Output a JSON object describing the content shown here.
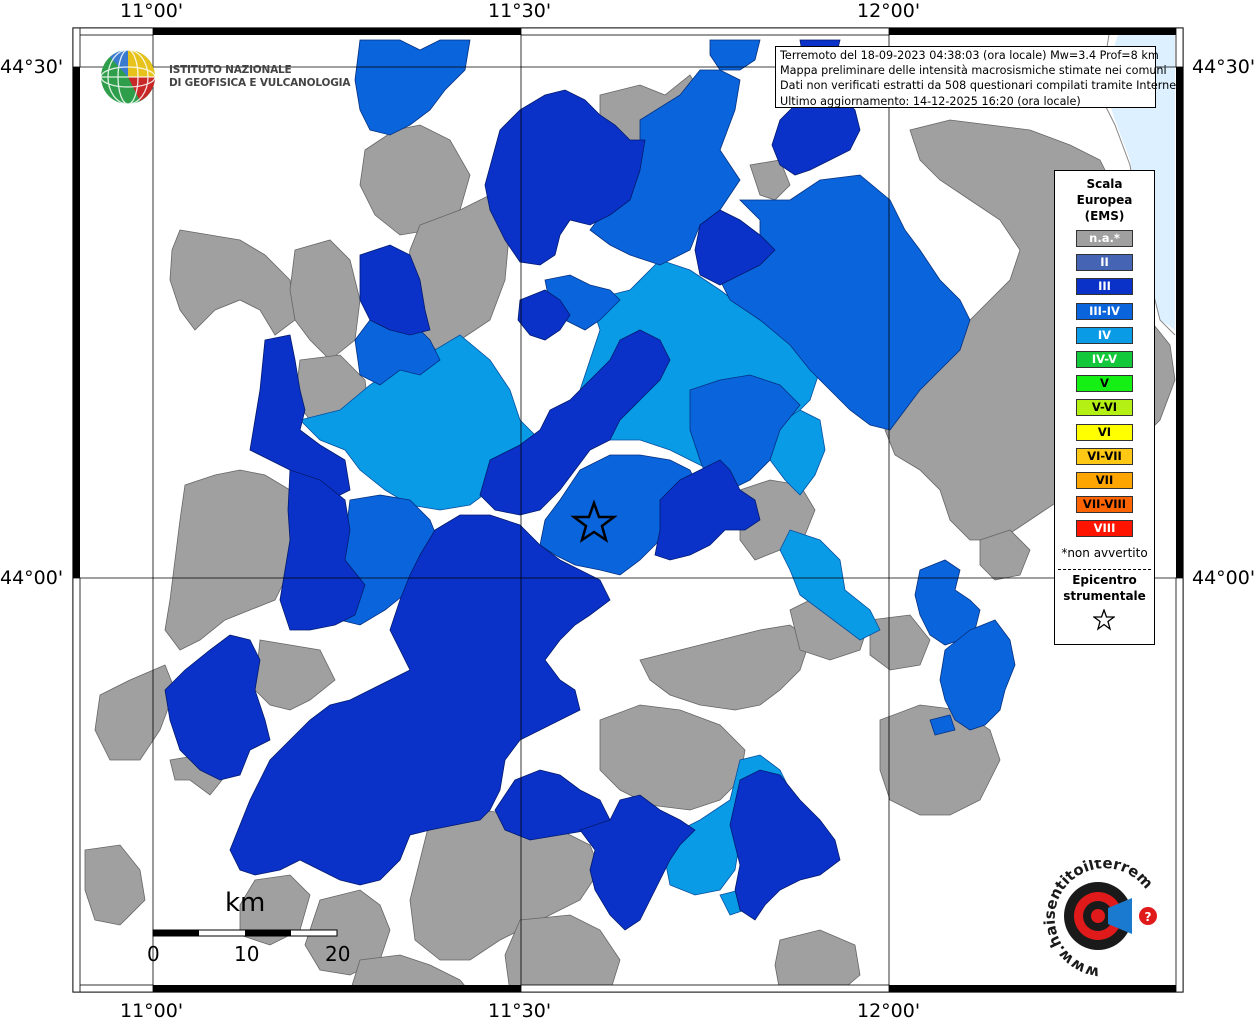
{
  "coordinates": {
    "lon_labels": [
      "11°00'",
      "11°30'",
      "12°00'"
    ],
    "lat_labels": [
      "44°30'",
      "44°00'"
    ]
  },
  "header": {
    "line1": "Terremoto del 18-09-2023 04:38:03 (ora locale) Mw=3.4 Prof=8 km",
    "line2": "Mappa preliminare delle intensità macrosismiche stimate nei comuni",
    "line3": "Dati non verificati estratti da 508 questionari compilati tramite Internet.",
    "line4": "Ultimo aggiornamento: 14-12-2025 16:20 (ora locale)"
  },
  "ingv": {
    "line1": "ISTITUTO NAZIONALE",
    "line2": "DI GEOFISICA E VULCANOLOGIA"
  },
  "legend": {
    "title1": "Scala",
    "title2": "Europea",
    "title3": "(EMS)",
    "items": [
      {
        "label": "n.a.*",
        "color": "#a0a0a0",
        "text_color": "#ffffff"
      },
      {
        "label": "II",
        "color": "#4664b4",
        "text_color": "#ffffff"
      },
      {
        "label": "III",
        "color": "#0a32c8",
        "text_color": "#ffffff"
      },
      {
        "label": "III-IV",
        "color": "#0a64dc",
        "text_color": "#ffffff"
      },
      {
        "label": "IV",
        "color": "#0a9be6",
        "text_color": "#ffffff"
      },
      {
        "label": "IV-V",
        "color": "#14c83c",
        "text_color": "#ffffff"
      },
      {
        "label": "V",
        "color": "#14f014",
        "text_color": "#000000"
      },
      {
        "label": "V-VI",
        "color": "#b4f014",
        "text_color": "#000000"
      },
      {
        "label": "VI",
        "color": "#ffff00",
        "text_color": "#000000"
      },
      {
        "label": "VI-VII",
        "color": "#ffc814",
        "text_color": "#000000"
      },
      {
        "label": "VII",
        "color": "#ffa500",
        "text_color": "#000000"
      },
      {
        "label": "VII-VIII",
        "color": "#ff6400",
        "text_color": "#000000"
      },
      {
        "label": "VIII",
        "color": "#ff1400",
        "text_color": "#ffffff"
      }
    ],
    "note": "*non avvertito",
    "epicentre1": "Epicentro",
    "epicentre2": "strumentale"
  },
  "scale_bar": {
    "unit": "km",
    "ticks": [
      "0",
      "10",
      "20"
    ]
  },
  "colors": {
    "na": "#a0a0a0",
    "II": "#4664b4",
    "III": "#0a32c8",
    "III_IV": "#0a64dc",
    "IV": "#0a9be6",
    "sea": "#dcf0ff"
  },
  "hsit_logo": {
    "text": "www.haisentitoilterremoto.it"
  }
}
